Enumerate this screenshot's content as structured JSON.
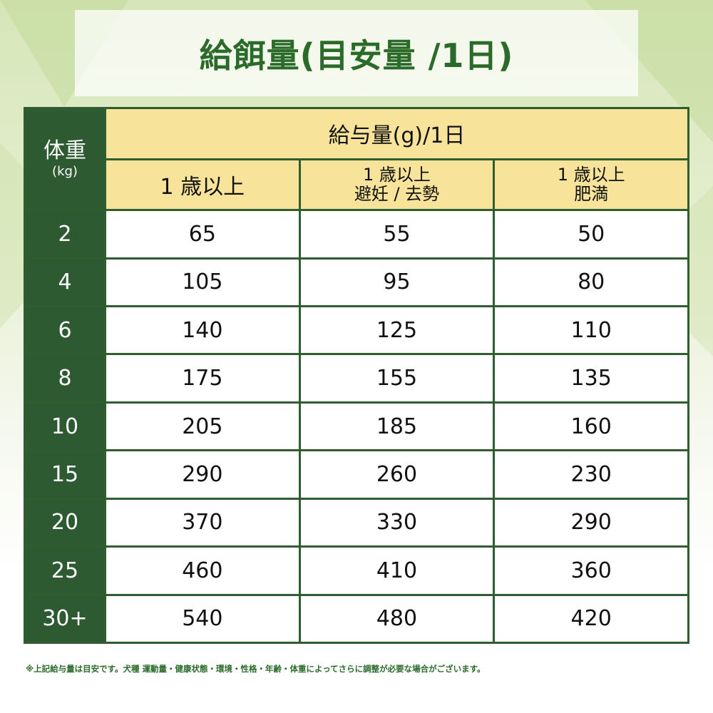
{
  "title": "給餌量(目安量 /1日)",
  "table": {
    "weight_header": "体重",
    "weight_unit": "(kg)",
    "amount_header": "給与量(g)/1日",
    "columns": [
      {
        "line1": "1 歳以上",
        "line2": ""
      },
      {
        "line1": "1 歳以上",
        "line2": "避妊 / 去勢"
      },
      {
        "line1": "1 歳以上",
        "line2": "肥満"
      }
    ],
    "rows": [
      {
        "weight": "2",
        "values": [
          "65",
          "55",
          "50"
        ]
      },
      {
        "weight": "4",
        "values": [
          "105",
          "95",
          "80"
        ]
      },
      {
        "weight": "6",
        "values": [
          "140",
          "125",
          "110"
        ]
      },
      {
        "weight": "8",
        "values": [
          "175",
          "155",
          "135"
        ]
      },
      {
        "weight": "10",
        "values": [
          "205",
          "185",
          "160"
        ]
      },
      {
        "weight": "15",
        "values": [
          "290",
          "260",
          "230"
        ]
      },
      {
        "weight": "20",
        "values": [
          "370",
          "330",
          "290"
        ]
      },
      {
        "weight": "25",
        "values": [
          "460",
          "410",
          "360"
        ]
      },
      {
        "weight": "30+",
        "values": [
          "540",
          "480",
          "420"
        ]
      }
    ]
  },
  "footnote": "※上記給与量は目安です。犬種 運動量・健康状態・環境・性格・年齢・体重によってさらに調整が必要な場合がございます。",
  "colors": {
    "dark_green": "#2d5a30",
    "header_yellow": "#f8e39a",
    "title_green": "#2b6b2a"
  }
}
